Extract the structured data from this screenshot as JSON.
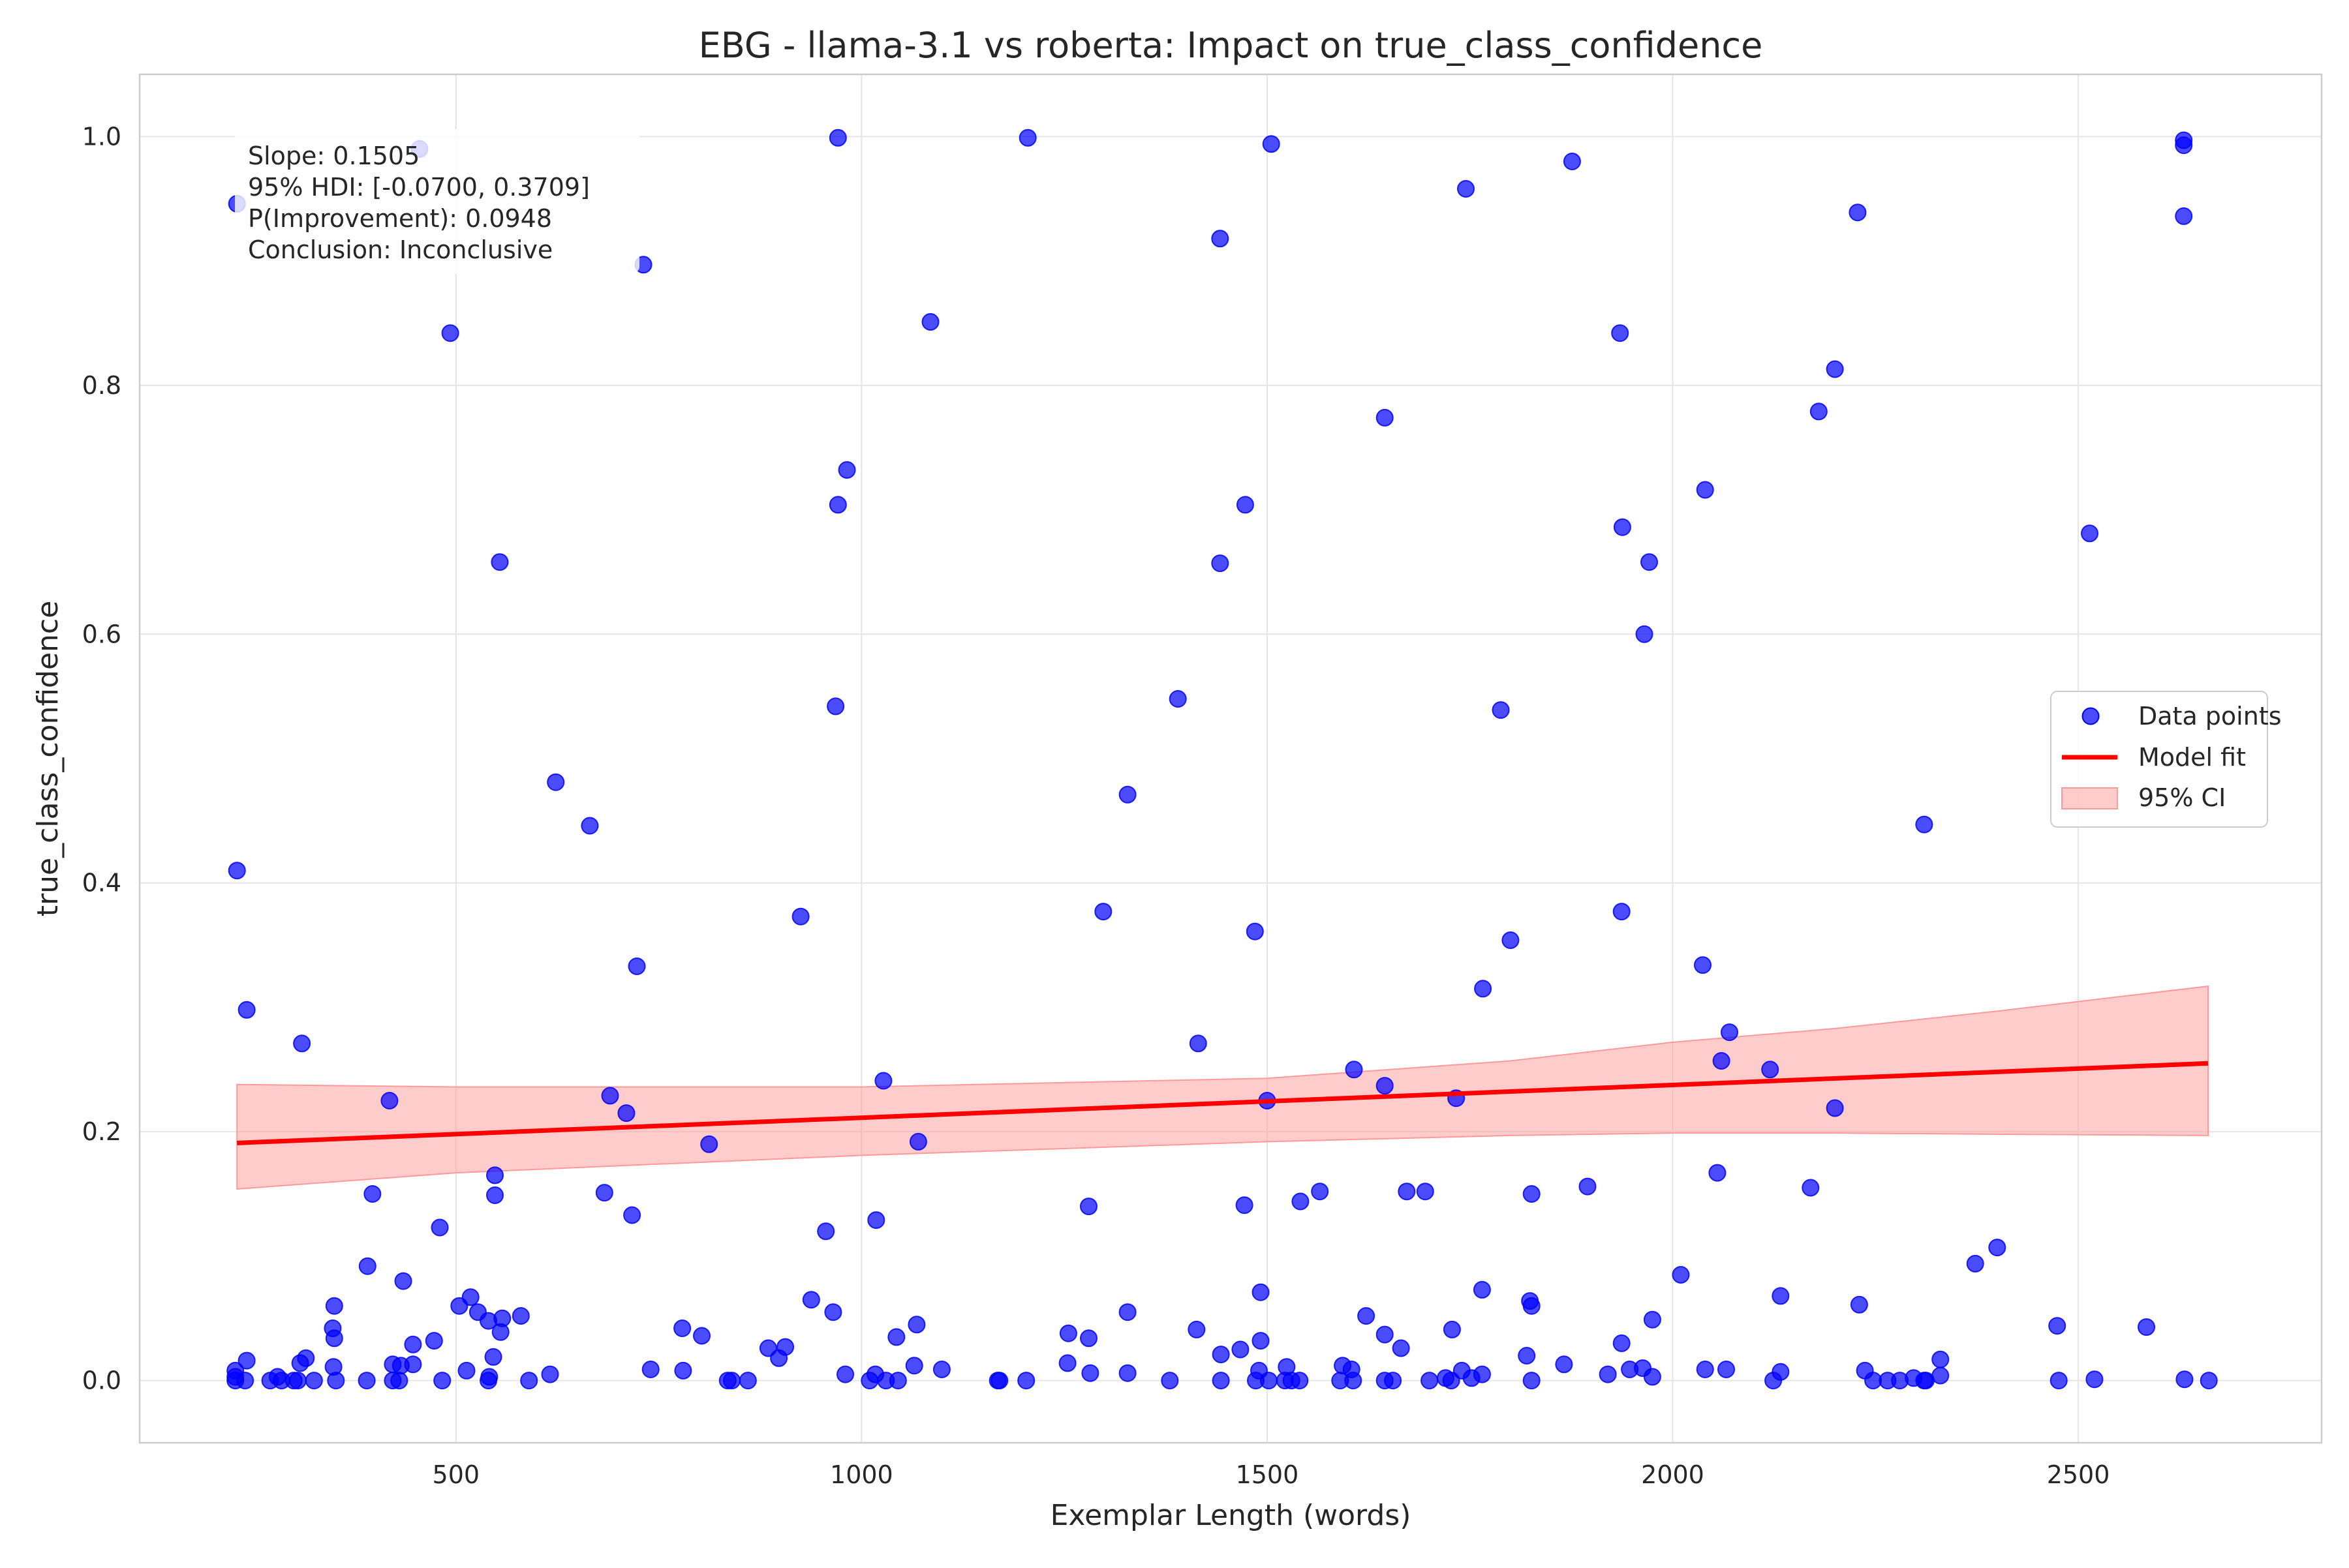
{
  "chart_data": {
    "type": "scatter",
    "title": "EBG - llama-3.1 vs roberta: Impact on true_class_confidence",
    "xlabel": "Exemplar Length (words)",
    "ylabel": "true_class_confidence",
    "xlim": [
      110,
      2800
    ],
    "ylim": [
      -0.05,
      1.05
    ],
    "xticks": [
      500,
      1000,
      1500,
      2000,
      2500
    ],
    "yticks": [
      0.0,
      0.2,
      0.4,
      0.6,
      0.8,
      1.0
    ],
    "xtick_labels": [
      "500",
      "1000",
      "1500",
      "2000",
      "2500"
    ],
    "ytick_labels": [
      "0.0",
      "0.2",
      "0.4",
      "0.6",
      "0.8",
      "1.0"
    ],
    "grid": true,
    "legend_position": "center-right",
    "legend": [
      "Data points",
      "Model fit",
      "95% CI"
    ],
    "stats": [
      "Slope: 0.1505",
      "95% HDI: [-0.0700, 0.3709]",
      "P(Improvement): 0.0948",
      "Conclusion: Inconclusive"
    ],
    "colors": {
      "points": "#0000ff",
      "fit": "#ff0000",
      "ci": "#ff9999"
    },
    "model_fit": {
      "x": [
        230,
        2660
      ],
      "y": [
        0.191,
        0.255
      ]
    },
    "ci_band": {
      "x": [
        230,
        500,
        1000,
        1500,
        1800,
        2000,
        2200,
        2400,
        2660
      ],
      "lower": [
        0.154,
        0.167,
        0.181,
        0.192,
        0.197,
        0.199,
        0.199,
        0.198,
        0.197
      ],
      "upper": [
        0.238,
        0.236,
        0.236,
        0.243,
        0.257,
        0.272,
        0.283,
        0.297,
        0.317
      ]
    },
    "series": [
      {
        "name": "Data points",
        "points": [
          [
            230,
            0.946
          ],
          [
            455,
            0.99
          ],
          [
            493,
            0.842
          ],
          [
            731,
            0.897
          ],
          [
            971,
            0.999
          ],
          [
            1085,
            0.851
          ],
          [
            1205,
            0.999
          ],
          [
            1505,
            0.994
          ],
          [
            1442,
            0.918
          ],
          [
            1745,
            0.958
          ],
          [
            1876,
            0.98
          ],
          [
            1935,
            0.842
          ],
          [
            2228,
            0.939
          ],
          [
            2200,
            0.813
          ],
          [
            2180,
            0.779
          ],
          [
            1645,
            0.774
          ],
          [
            2040,
            0.716
          ],
          [
            1938,
            0.686
          ],
          [
            1971,
            0.658
          ],
          [
            1473,
            0.704
          ],
          [
            1442,
            0.657
          ],
          [
            982,
            0.732
          ],
          [
            971,
            0.704
          ],
          [
            554,
            0.658
          ],
          [
            2514,
            0.681
          ],
          [
            2630,
            0.993
          ],
          [
            2630,
            0.997
          ],
          [
            2630,
            0.936
          ],
          [
            1965,
            0.6
          ],
          [
            968,
            0.542
          ],
          [
            1390,
            0.548
          ],
          [
            1788,
            0.539
          ],
          [
            1328,
            0.471
          ],
          [
            623,
            0.481
          ],
          [
            665,
            0.446
          ],
          [
            2310,
            0.447
          ],
          [
            230,
            0.41
          ],
          [
            925,
            0.373
          ],
          [
            1298,
            0.377
          ],
          [
            1485,
            0.361
          ],
          [
            1937,
            0.377
          ],
          [
            1800,
            0.354
          ],
          [
            723,
            0.333
          ],
          [
            2037,
            0.334
          ],
          [
            1766,
            0.315
          ],
          [
            242,
            0.298
          ],
          [
            310,
            0.271
          ],
          [
            1415,
            0.271
          ],
          [
            2070,
            0.28
          ],
          [
            1027,
            0.241
          ],
          [
            1607,
            0.25
          ],
          [
            1645,
            0.237
          ],
          [
            2060,
            0.257
          ],
          [
            2120,
            0.25
          ],
          [
            418,
            0.225
          ],
          [
            690,
            0.229
          ],
          [
            710,
            0.215
          ],
          [
            1500,
            0.225
          ],
          [
            1733,
            0.227
          ],
          [
            2200,
            0.219
          ],
          [
            812,
            0.19
          ],
          [
            1070,
            0.192
          ],
          [
            548,
            0.165
          ],
          [
            397,
            0.15
          ],
          [
            548,
            0.149
          ],
          [
            683,
            0.151
          ],
          [
            480,
            0.123
          ],
          [
            717,
            0.133
          ],
          [
            956,
            0.12
          ],
          [
            1018,
            0.129
          ],
          [
            1280,
            0.14
          ],
          [
            1472,
            0.141
          ],
          [
            1541,
            0.144
          ],
          [
            1565,
            0.152
          ],
          [
            1672,
            0.152
          ],
          [
            1695,
            0.152
          ],
          [
            1826,
            0.15
          ],
          [
            1895,
            0.156
          ],
          [
            2055,
            0.167
          ],
          [
            2170,
            0.155
          ],
          [
            2010,
            0.085
          ],
          [
            2373,
            0.094
          ],
          [
            2400,
            0.107
          ],
          [
            391,
            0.092
          ],
          [
            435,
            0.08
          ],
          [
            350,
            0.06
          ],
          [
            504,
            0.06
          ],
          [
            518,
            0.067
          ],
          [
            527,
            0.055
          ],
          [
            540,
            0.048
          ],
          [
            557,
            0.05
          ],
          [
            580,
            0.052
          ],
          [
            555,
            0.039
          ],
          [
            348,
            0.042
          ],
          [
            350,
            0.034
          ],
          [
            447,
            0.029
          ],
          [
            473,
            0.032
          ],
          [
            546,
            0.019
          ],
          [
            938,
            0.065
          ],
          [
            965,
            0.055
          ],
          [
            779,
            0.042
          ],
          [
            803,
            0.036
          ],
          [
            885,
            0.026
          ],
          [
            906,
            0.027
          ],
          [
            898,
            0.018
          ],
          [
            1043,
            0.035
          ],
          [
            1068,
            0.045
          ],
          [
            1255,
            0.038
          ],
          [
            1280,
            0.034
          ],
          [
            1328,
            0.055
          ],
          [
            1413,
            0.041
          ],
          [
            1467,
            0.025
          ],
          [
            1443,
            0.021
          ],
          [
            1492,
            0.071
          ],
          [
            1492,
            0.032
          ],
          [
            1622,
            0.052
          ],
          [
            1645,
            0.037
          ],
          [
            1665,
            0.026
          ],
          [
            1728,
            0.041
          ],
          [
            1765,
            0.073
          ],
          [
            1824,
            0.064
          ],
          [
            1826,
            0.06
          ],
          [
            1820,
            0.02
          ],
          [
            1866,
            0.013
          ],
          [
            1937,
            0.03
          ],
          [
            1975,
            0.049
          ],
          [
            2133,
            0.068
          ],
          [
            2230,
            0.061
          ],
          [
            2330,
            0.017
          ],
          [
            2474,
            0.044
          ],
          [
            2584,
            0.043
          ],
          [
            242,
            0.016
          ],
          [
            315,
            0.018
          ],
          [
            308,
            0.014
          ],
          [
            349,
            0.011
          ],
          [
            422,
            0.013
          ],
          [
            432,
            0.012
          ],
          [
            447,
            0.013
          ],
          [
            513,
            0.008
          ],
          [
            616,
            0.005
          ],
          [
            740,
            0.009
          ],
          [
            780,
            0.008
          ],
          [
            1065,
            0.012
          ],
          [
            1099,
            0.009
          ],
          [
            1254,
            0.014
          ],
          [
            1282,
            0.006
          ],
          [
            1328,
            0.006
          ],
          [
            1490,
            0.008
          ],
          [
            1524,
            0.011
          ],
          [
            1593,
            0.012
          ],
          [
            1604,
            0.009
          ],
          [
            1740,
            0.008
          ],
          [
            1947,
            0.009
          ],
          [
            1963,
            0.01
          ],
          [
            2040,
            0.009
          ],
          [
            2066,
            0.009
          ],
          [
            2133,
            0.007
          ],
          [
            2237,
            0.008
          ],
          [
            2297,
            0.002
          ],
          [
            2330,
            0.004
          ],
          [
            228,
            0.008
          ],
          [
            228,
            0.003
          ],
          [
            228,
            0
          ],
          [
            240,
            0
          ],
          [
            271,
            0
          ],
          [
            280,
            0.003
          ],
          [
            285,
            0
          ],
          [
            300,
            0
          ],
          [
            305,
            0
          ],
          [
            325,
            0
          ],
          [
            352,
            0
          ],
          [
            390,
            0
          ],
          [
            422,
            0
          ],
          [
            430,
            0
          ],
          [
            483,
            0
          ],
          [
            540,
            0
          ],
          [
            541,
            0.003
          ],
          [
            590,
            0
          ],
          [
            835,
            0
          ],
          [
            840,
            0
          ],
          [
            860,
            0
          ],
          [
            980,
            0.005
          ],
          [
            1010,
            0
          ],
          [
            1017,
            0.005
          ],
          [
            1030,
            0
          ],
          [
            1045,
            0
          ],
          [
            1168,
            0
          ],
          [
            1170,
            0
          ],
          [
            1203,
            0
          ],
          [
            1380,
            0
          ],
          [
            1443,
            0
          ],
          [
            1486,
            0
          ],
          [
            1502,
            0
          ],
          [
            1522,
            0
          ],
          [
            1530,
            0
          ],
          [
            1540,
            0
          ],
          [
            1590,
            0
          ],
          [
            1606,
            0
          ],
          [
            1645,
            0
          ],
          [
            1655,
            0
          ],
          [
            1700,
            0
          ],
          [
            1720,
            0.002
          ],
          [
            1727,
            0
          ],
          [
            1752,
            0.002
          ],
          [
            1765,
            0.005
          ],
          [
            1826,
            0
          ],
          [
            1920,
            0.005
          ],
          [
            1975,
            0.003
          ],
          [
            2124,
            0
          ],
          [
            2247,
            0
          ],
          [
            2265,
            0
          ],
          [
            2280,
            0
          ],
          [
            2310,
            0
          ],
          [
            2312,
            0
          ],
          [
            2476,
            0
          ],
          [
            2520,
            0.001
          ],
          [
            2631,
            0.001
          ],
          [
            2661,
            0
          ]
        ]
      }
    ]
  }
}
